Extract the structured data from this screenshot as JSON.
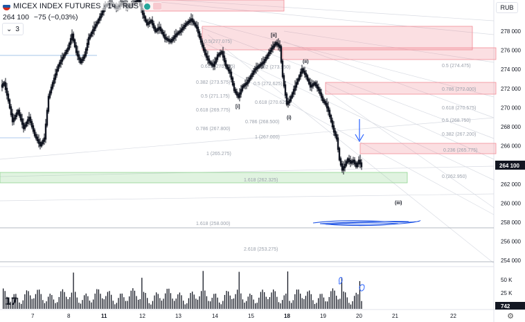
{
  "header": {
    "symbol": "MICEX INDEX FUTURES · 1ч · RUS",
    "flag_colors": [
      "#ffffff",
      "#1c57a5",
      "#d52b1e"
    ],
    "last_price": "264 100",
    "change": "−75 (−0,03%)",
    "indicators_count": "3",
    "toggle_icon": "chevron-down-icon",
    "currency": "RUB"
  },
  "axis": {
    "price_ticks": [
      "278 000",
      "276 000",
      "274 000",
      "272 000",
      "270 000",
      "268 000",
      "266 000",
      "264 000",
      "262 000",
      "260 000",
      "258 000",
      "256 000",
      "254 000"
    ],
    "current_price_label": "264 100",
    "volume_ticks": [
      "50 K",
      "25 K"
    ],
    "current_volume_label": "742",
    "time_ticks": [
      "7",
      "8",
      "11",
      "12",
      "13",
      "14",
      "15",
      "18",
      "19",
      "20",
      "21",
      "22"
    ],
    "bold_time_ticks": [
      "11",
      "18"
    ]
  },
  "wave_labels": [
    "[ii]",
    "(ii)",
    "[i]",
    "(i)",
    "(iii)"
  ],
  "fib_labels_left": [
    "0.5(277.075)",
    "0.618 (275.135)",
    "0.382 (273.575)",
    "0.5 (271.175)",
    "0.618 (269.775)",
    "0.786 (267.800)",
    "1 (265.275)",
    "1.618 (262.325)",
    "1.618 (258.000)",
    "2.618 (253.275)"
  ],
  "fib_labels_mid": [
    "0.382 (273.950)",
    "0.5 (272.625)",
    "0.618 (270.625)",
    "0.786 (268.500)",
    "1 (267.000)"
  ],
  "fib_labels_right": [
    "0.5 (274.475)",
    "0.786 (272.000)",
    "0.618 (270.575)",
    "0.5 (268.750)",
    "0.382 (267.200)",
    "0.236 (265.775)",
    "0.(262.950)"
  ],
  "colors": {
    "zone_red": "#f28b96",
    "zone_green": "#8fd48f",
    "candle": "#131722",
    "arrow": "#2962ff",
    "scribble": "#1e53e5",
    "price_badge": "#131722"
  },
  "branding": {
    "logo_text": "17",
    "settings_icon": "gear-icon"
  }
}
